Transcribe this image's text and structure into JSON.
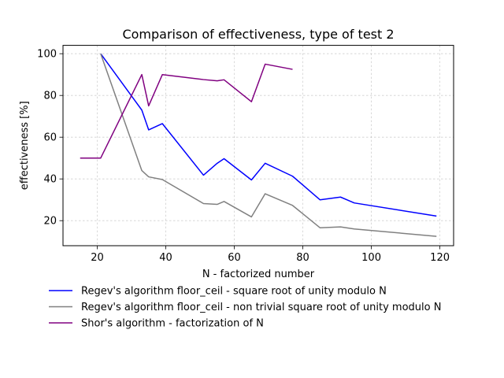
{
  "chart_data": {
    "type": "line",
    "title": "Comparison of effectiveness, type of test 2",
    "xlabel": "N - factorized number",
    "ylabel": "effectiveness [%]",
    "xlim": [
      10,
      124
    ],
    "ylim": [
      8,
      104
    ],
    "xticks": [
      20,
      40,
      60,
      80,
      100,
      120
    ],
    "yticks": [
      20,
      40,
      60,
      80,
      100
    ],
    "grid": true,
    "legend_position": "below",
    "series": [
      {
        "name": "Regev's algorithm floor_ceil - square root of unity modulo N",
        "color": "#0000ff",
        "x": [
          21,
          33,
          35,
          39,
          51,
          55,
          57,
          65,
          69,
          77,
          85,
          91,
          95,
          119
        ],
        "y": [
          100,
          73,
          63.5,
          66.5,
          41.8,
          47.5,
          49.7,
          39.5,
          47.5,
          41.3,
          30,
          31.3,
          28.5,
          22.2
        ]
      },
      {
        "name": "Regev's algorithm floor_ceil - non trivial square root of unity modulo N",
        "color": "#808080",
        "x": [
          21,
          33,
          35,
          39,
          51,
          55,
          57,
          65,
          69,
          77,
          85,
          91,
          95,
          119
        ],
        "y": [
          100,
          44,
          41,
          39.7,
          28.2,
          27.8,
          29.2,
          21.8,
          32.9,
          27.3,
          16.6,
          17,
          16,
          12.5
        ]
      },
      {
        "name": "Shor's algorithm - factorization of N",
        "color": "#800080",
        "x": [
          15,
          21,
          33,
          35,
          39,
          51,
          55,
          57,
          65,
          69,
          77
        ],
        "y": [
          50,
          50,
          90,
          75,
          90,
          87.6,
          87,
          87.5,
          77,
          95,
          92.5
        ]
      }
    ]
  }
}
